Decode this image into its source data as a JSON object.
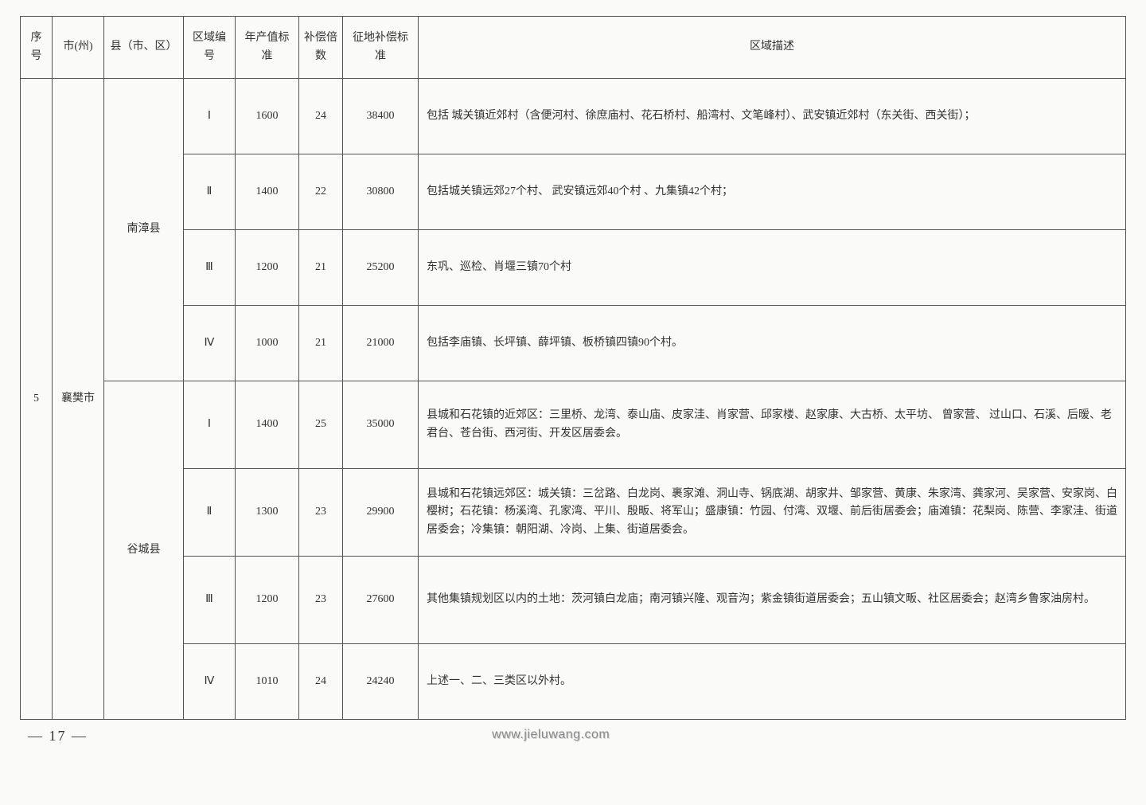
{
  "headers": {
    "idx": "序号",
    "city": "市(州)",
    "county": "县（市、区）",
    "zone": "区域编号",
    "value": "年产值标准",
    "mult": "补偿倍数",
    "comp": "征地补偿标准",
    "desc": "区域描述"
  },
  "idx": "5",
  "city": "襄樊市",
  "counties": {
    "c0": "南漳县",
    "c1": "谷城县"
  },
  "rows": {
    "r0": {
      "zone": "Ⅰ",
      "value": "1600",
      "mult": "24",
      "comp": "38400",
      "desc": "包括 城关镇近郊村（含便河村、徐庶庙村、花石桥村、船湾村、文笔峰村）、武安镇近郊村（东关街、西关街）；"
    },
    "r1": {
      "zone": "Ⅱ",
      "value": "1400",
      "mult": "22",
      "comp": "30800",
      "desc": "包括城关镇远郊27个村、 武安镇远郊40个村 、九集镇42个村；"
    },
    "r2": {
      "zone": "Ⅲ",
      "value": "1200",
      "mult": "21",
      "comp": "25200",
      "desc": "东巩、巡检、肖堰三镇70个村"
    },
    "r3": {
      "zone": "Ⅳ",
      "value": "1000",
      "mult": "21",
      "comp": "21000",
      "desc": "包括李庙镇、长坪镇、薛坪镇、板桥镇四镇90个村。"
    },
    "r4": {
      "zone": "Ⅰ",
      "value": "1400",
      "mult": "25",
      "comp": "35000",
      "desc": "县城和石花镇的近郊区：三里桥、龙湾、泰山庙、皮家洼、肖家营、邱家楼、赵家康、大古桥、太平坊、 曾家营、 过山口、石溪、后暧、老君台、苍台街、西河街、开发区居委会。"
    },
    "r5": {
      "zone": "Ⅱ",
      "value": "1300",
      "mult": "23",
      "comp": "29900",
      "desc": "县城和石花镇远郊区：城关镇：三岔路、白龙岗、裹家滩、洞山寺、锅底湖、胡家井、邹家营、黄康、朱家湾、龚家河、吴家营、安家岗、白樱树；石花镇：杨溪湾、孔家湾、平川、殷畈、将军山；盛康镇：竹园、付湾、双堰、前后街居委会；庙滩镇：花梨岗、陈营、李家洼、街道居委会；冷集镇：朝阳湖、冷岗、上集、街道居委会。"
    },
    "r6": {
      "zone": "Ⅲ",
      "value": "1200",
      "mult": "23",
      "comp": "27600",
      "desc": "其他集镇规划区以内的土地：茨河镇白龙庙；南河镇兴隆、观音沟；紫金镇街道居委会；五山镇文畈、社区居委会；赵湾乡鲁家油房村。"
    },
    "r7": {
      "zone": "Ⅳ",
      "value": "1010",
      "mult": "24",
      "comp": "24240",
      "desc": "上述一、二、三类区以外村。"
    }
  },
  "page": "— 17 —",
  "watermark": "www.jieluwang.com"
}
